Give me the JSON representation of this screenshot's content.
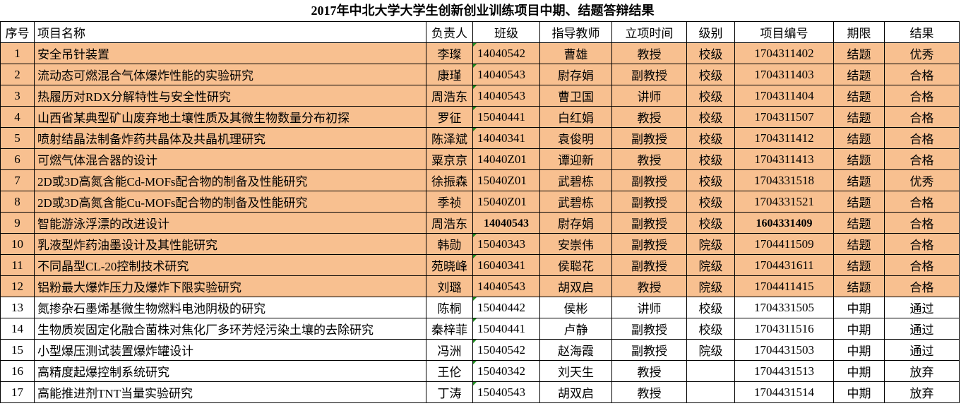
{
  "title": "2017年中北大学大学生创新创业训练项目中期、结题答辩结果",
  "columns": [
    "序号",
    "项目名称",
    "负责人",
    "班级",
    "指导教师",
    "立项时间",
    "级别",
    "项目编号",
    "期限",
    "结果"
  ],
  "colors": {
    "finished_row_fill": "#F8C090",
    "comment_marker": "#1a8a1a"
  },
  "rows": [
    {
      "no": "1",
      "name": "安全吊针装置",
      "leader": "李璨",
      "cls": "14040542",
      "advisor": "曹雄",
      "title": "教授",
      "level": "校级",
      "code": "1704311402",
      "stage": "结题",
      "result": "优秀",
      "done": true,
      "mark": true
    },
    {
      "no": "2",
      "name": "流动态可燃混合气体爆炸性能的实验研究",
      "leader": "康瑾",
      "cls": "14040543",
      "advisor": "尉存娟",
      "title": "副教授",
      "level": "校级",
      "code": "1704311403",
      "stage": "结题",
      "result": "合格",
      "done": true,
      "mark": true
    },
    {
      "no": "3",
      "name": "热履历对RDX分解特性与安全性研究",
      "leader": "周浩东",
      "cls": "14040543",
      "advisor": "曹卫国",
      "title": "讲师",
      "level": "校级",
      "code": "1704311404",
      "stage": "结题",
      "result": "合格",
      "done": true,
      "mark": true
    },
    {
      "no": "4",
      "name": "山西省某典型矿山废弃地土壤性质及其微生物数量分布初探",
      "leader": "罗征",
      "cls": "15040441",
      "advisor": "白红娟",
      "title": "教授",
      "level": "校级",
      "code": "1704311507",
      "stage": "结题",
      "result": "合格",
      "done": true,
      "mark": true
    },
    {
      "no": "5",
      "name": "喷射结晶法制备炸药共晶体及共晶机理研究",
      "leader": "陈泽斌",
      "cls": "14040341",
      "advisor": "袁俊明",
      "title": "副教授",
      "level": "校级",
      "code": "1704311412",
      "stage": "结题",
      "result": "合格",
      "done": true,
      "mark": true
    },
    {
      "no": "6",
      "name": "可燃气体混合器的设计",
      "leader": "粟京京",
      "cls": "14040Z01",
      "advisor": "谭迎新",
      "title": "教授",
      "level": "校级",
      "code": "1704311413",
      "stage": "结题",
      "result": "合格",
      "done": true,
      "mark": false
    },
    {
      "no": "7",
      "name": "2D或3D高氮含能Cd-MOFs配合物的制备及性能研究",
      "leader": "徐振森",
      "cls": "15040Z01",
      "advisor": "武碧栋",
      "title": "副教授",
      "level": "校级",
      "code": "1704331518",
      "stage": "结题",
      "result": "优秀",
      "done": true,
      "mark": false
    },
    {
      "no": "8",
      "name": "2D或3D高氮含能Cu-MOFs配合物的制备及性能研究",
      "leader": "季祯",
      "cls": "15040Z01",
      "advisor": "武碧栋",
      "title": "副教授",
      "level": "校级",
      "code": "1704331521",
      "stage": "结题",
      "result": "合格",
      "done": true,
      "mark": false
    },
    {
      "no": "9",
      "name": "智能游泳浮漂的改进设计",
      "leader": "周浩东",
      "cls": "14040543",
      "advisor": "尉存娟",
      "title": "副教授",
      "level": "校级",
      "code": "1604331409",
      "stage": "结题",
      "result": "合格",
      "done": true,
      "mark": false,
      "bold": true
    },
    {
      "no": "10",
      "name": "乳液型炸药油墨设计及其性能研究",
      "leader": "韩勋",
      "cls": "15040343",
      "advisor": "安崇伟",
      "title": "副教授",
      "level": "院级",
      "code": "1704411509",
      "stage": "结题",
      "result": "合格",
      "done": true,
      "mark": true
    },
    {
      "no": "11",
      "name": "不同晶型CL-20控制技术研究",
      "leader": "苑晓峰",
      "cls": "16040341",
      "advisor": "侯聪花",
      "title": "副教授",
      "level": "院级",
      "code": "1704431611",
      "stage": "结题",
      "result": "合格",
      "done": true,
      "mark": true
    },
    {
      "no": "12",
      "name": "铝粉最大爆炸压力及爆炸下限实验研究",
      "leader": "刘璐",
      "cls": "14040543",
      "advisor": "胡双启",
      "title": "教授",
      "level": "院级",
      "code": "1704411415",
      "stage": "结题",
      "result": "合格",
      "done": true,
      "mark": false
    },
    {
      "no": "13",
      "name": "氮掺杂石墨烯基微生物燃料电池阴极的研究",
      "leader": "陈桐",
      "cls": "15040442",
      "advisor": "侯彬",
      "title": "讲师",
      "level": "校级",
      "code": "1704331505",
      "stage": "中期",
      "result": "通过",
      "done": false,
      "mark": true
    },
    {
      "no": "14",
      "name": "生物质炭固定化融合菌株对焦化厂多环芳烃污染土壤的去除研究",
      "leader": "秦梓菲",
      "cls": "15040441",
      "advisor": "卢静",
      "title": "副教授",
      "level": "校级",
      "code": "1704311516",
      "stage": "中期",
      "result": "通过",
      "done": false,
      "mark": true
    },
    {
      "no": "15",
      "name": "小型爆压测试装置爆炸罐设计",
      "leader": "冯洲",
      "cls": "15040542",
      "advisor": "赵海霞",
      "title": "副教授",
      "level": "院级",
      "code": "1704431503",
      "stage": "中期",
      "result": "通过",
      "done": false,
      "mark": true
    },
    {
      "no": "16",
      "name": "高精度起爆控制系统研究",
      "leader": "王伦",
      "cls": "15040342",
      "advisor": "刘天生",
      "title": "教授",
      "level": "",
      "code": "1704431513",
      "stage": "中期",
      "result": "放弃",
      "done": false,
      "mark": true
    },
    {
      "no": "17",
      "name": "高能推进剂TNT当量实验研究",
      "leader": "丁涛",
      "cls": "15040543",
      "advisor": "胡双启",
      "title": "教授",
      "level": "",
      "code": "1704431514",
      "stage": "中期",
      "result": "放弃",
      "done": false,
      "mark": true
    }
  ]
}
